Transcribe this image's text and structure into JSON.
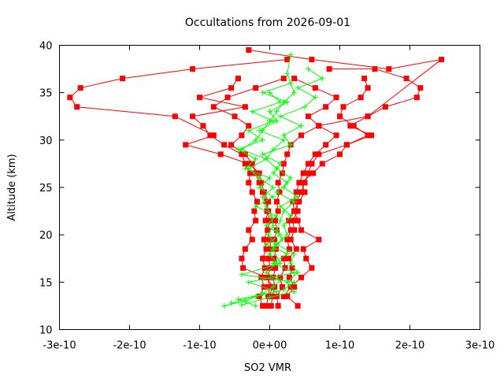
{
  "chart_data": {
    "type": "line",
    "title": "Occultations from 2026-09-01",
    "xlabel": "SO2 VMR",
    "ylabel": "Altitude (km)",
    "xlim": [
      -3e-10,
      3e-10
    ],
    "ylim": [
      10,
      40
    ],
    "x_ticks": [
      -3e-10,
      -2e-10,
      -1e-10,
      0,
      1e-10,
      2e-10,
      3e-10
    ],
    "x_tick_labels": [
      "-3e-10",
      "-2e-10",
      "-1e-10",
      "0e+00",
      "1e-10",
      "2e-10",
      "3e-10"
    ],
    "y_ticks": [
      10,
      15,
      20,
      25,
      30,
      35,
      40
    ],
    "y_tick_labels": [
      "10",
      "15",
      "20",
      "25",
      "30",
      "35",
      "40"
    ],
    "grid": false,
    "colors": {
      "red": "#ff0000",
      "green": "#00ff00",
      "frame": "#000000"
    },
    "series": [
      {
        "color": "red",
        "marker": "square",
        "x": [
          2e-12,
          4e-12,
          7e-12,
          5e-12,
          8e-12,
          6e-12,
          9e-12,
          7e-12,
          1e-11,
          8e-12,
          1.2e-11,
          1e-11,
          1.4e-11,
          1.2e-11,
          1.8e-11,
          2e-11,
          2.5e-11,
          3e-11,
          4.5e-11,
          7e-11,
          1.4e-10,
          2.45e-10,
          1.7e-10,
          6e-11,
          -3e-11
        ],
        "y": [
          12.5,
          13.5,
          14.5,
          15.5,
          16.5,
          17.5,
          18.5,
          19.5,
          20.5,
          21.5,
          22.5,
          23.5,
          24.5,
          25.5,
          26.5,
          27.5,
          28.5,
          29.5,
          30.5,
          31.5,
          32.5,
          38.5,
          37.5,
          38.5,
          39.5
        ]
      },
      {
        "color": "red",
        "marker": "square",
        "x": [
          -5e-12,
          -2e-12,
          0.0,
          -3e-12,
          1e-12,
          -2e-12,
          2e-12,
          0.0,
          -3e-12,
          1e-12,
          -4e-12,
          -2e-12,
          -8e-12,
          -1.2e-11,
          -1.5e-11,
          -3e-11,
          -7e-11,
          -1.2e-10,
          -8e-11,
          -1.35e-10,
          -2.75e-10,
          -2.85e-10,
          -2.7e-10,
          -2.1e-10,
          -1.1e-10,
          2.5e-11
        ],
        "y": [
          12.5,
          13.5,
          14.5,
          15.5,
          16.5,
          17.5,
          18.5,
          19.5,
          20.5,
          21.5,
          22.5,
          23.5,
          24.5,
          25.5,
          26.5,
          27.5,
          28.5,
          29.5,
          30.5,
          32.5,
          33.5,
          34.5,
          35.5,
          36.5,
          37.5,
          38.5
        ]
      },
      {
        "color": "red",
        "marker": "square",
        "x": [
          4e-11,
          2.5e-11,
          3.5e-11,
          2.8e-11,
          3.2e-11,
          2.7e-11,
          3.8e-11,
          3e-11,
          3.5e-11,
          3.3e-11,
          4e-11,
          3.8e-11,
          4.5e-11,
          5e-11,
          5.5e-11,
          6e-11,
          7e-11,
          1.1e-10,
          1.45e-10,
          1.15e-10,
          1.4e-10,
          1.65e-10,
          2.1e-10,
          2.15e-10,
          1.95e-10,
          1.5e-10,
          8.5e-11
        ],
        "y": [
          12.5,
          13.5,
          14.5,
          15.5,
          16.5,
          17.5,
          18.5,
          19.5,
          20.5,
          21.5,
          22.5,
          23.5,
          24.5,
          25.5,
          26.5,
          27.5,
          28.5,
          29.5,
          30.5,
          31.5,
          32.5,
          33.5,
          34.5,
          35.5,
          36.5,
          37.5,
          37.5
        ]
      },
      {
        "color": "red",
        "marker": "square",
        "x": [
          -1e-11,
          -1.5e-11,
          -8e-12,
          -1.2e-11,
          -7e-12,
          -1e-11,
          -5e-12,
          -8e-12,
          -3e-12,
          -6e-12,
          -2e-12,
          -5e-12,
          -1e-11,
          -1.5e-11,
          -2e-11,
          -2.5e-11,
          -3.5e-11,
          -5.5e-11,
          -4e-11,
          -3e-11,
          -5e-11,
          -8e-11,
          -6e-11,
          -2e-11,
          2e-11
        ],
        "y": [
          12.5,
          13.5,
          14.5,
          15.5,
          16.5,
          17.5,
          18.5,
          19.5,
          20.5,
          21.5,
          22.5,
          23.5,
          24.5,
          25.5,
          26.5,
          27.5,
          28.5,
          29.5,
          30.5,
          31.5,
          32.5,
          33.5,
          34.5,
          35.5,
          36.5
        ]
      },
      {
        "color": "red",
        "marker": "square",
        "x": [
          1.2e-11,
          1e-11,
          1.8e-11,
          1.5e-11,
          2.2e-11,
          2e-11,
          2.8e-11,
          2.5e-11,
          3e-11,
          2.7e-11,
          3.5e-11,
          3.3e-11,
          3.8e-11,
          4.2e-11,
          4.8e-11,
          5.5e-11,
          6.5e-11,
          8e-11,
          9.5e-11,
          7e-11,
          5.5e-11,
          8e-11,
          9.5e-11,
          6.5e-11,
          3.5e-11
        ],
        "y": [
          12.5,
          13.5,
          14.5,
          15.5,
          16.5,
          17.5,
          18.5,
          19.5,
          20.5,
          21.5,
          22.5,
          23.5,
          24.5,
          25.5,
          26.5,
          27.5,
          28.5,
          29.5,
          30.5,
          31.5,
          32.5,
          33.5,
          34.5,
          35.5,
          36.5
        ]
      },
      {
        "color": "red",
        "marker": "square",
        "x": [
          -2e-12,
          5e-12,
          -5e-12,
          -3.8e-11,
          -4e-11,
          -3.5e-11,
          -2.5e-11,
          -3e-11,
          -2e-11,
          -2.2e-11,
          -1.8e-11,
          -2.5e-11,
          -3e-11,
          -2.8e-11,
          -3.5e-11,
          -4e-11,
          -6.5e-11,
          -8.5e-11,
          -9.5e-11,
          -1.1e-10,
          -3.5e-11,
          -1e-10,
          -5.5e-11,
          -4.5e-11
        ],
        "y": [
          13.5,
          14.5,
          15.5,
          16.5,
          17.5,
          18.5,
          19.5,
          20.5,
          21.5,
          22.5,
          23.5,
          24.5,
          25.5,
          26.5,
          27.5,
          28.5,
          29.5,
          30.5,
          31.5,
          32.5,
          33.5,
          34.5,
          35.5,
          36.5
        ]
      },
      {
        "color": "red",
        "marker": "square",
        "x": [
          2e-11,
          3e-11,
          4.5e-11,
          6e-11,
          5.2e-11,
          4.8e-11,
          7e-11,
          4.5e-11,
          4e-11,
          3.5e-11,
          4.2e-11,
          5e-11,
          4.5e-11,
          6.2e-11,
          7.5e-11,
          1e-10,
          1.1e-10,
          1.4e-10,
          1.2e-10,
          1e-10,
          1.05e-10,
          1.3e-10,
          1.4e-10,
          1.35e-10
        ],
        "y": [
          13.5,
          14.5,
          15.5,
          16.5,
          17.5,
          18.5,
          19.5,
          20.5,
          21.5,
          22.5,
          23.5,
          24.5,
          25.5,
          26.5,
          27.5,
          28.5,
          29.5,
          30.5,
          31.5,
          32.5,
          33.5,
          34.5,
          35.5,
          36.5
        ]
      }
    ],
    "green_series": [
      {
        "color": "green",
        "marker": "plus",
        "x": [
          -6.5e-11,
          -3.5e-11,
          -1e-11,
          5e-12,
          1.5e-11,
          -5e-12,
          1e-11,
          0.0,
          8e-12,
          -2e-12,
          5e-12,
          2e-12,
          -5e-12,
          -1e-11,
          5e-12,
          -1.5e-11,
          -3e-11,
          -5e-12,
          -4e-11,
          -2e-11,
          -1e-11,
          0.0,
          1e-11,
          2e-11,
          3.5e-11,
          2.5e-11,
          3e-11
        ],
        "y": [
          12.5,
          13.0,
          13.8,
          14.5,
          15.2,
          16.0,
          17.0,
          18.0,
          19.0,
          20.0,
          21.0,
          22.0,
          23.0,
          24.0,
          25.0,
          26.0,
          27.0,
          28.0,
          29.0,
          30.0,
          31.0,
          32.0,
          33.0,
          34.0,
          35.0,
          37.0,
          39.0
        ]
      },
      {
        "color": "green",
        "marker": "plus",
        "x": [
          -5.5e-11,
          -2e-11,
          2e-11,
          3.5e-11,
          -4e-11,
          1.5e-11,
          5e-12,
          1.8e-11,
          1e-11,
          1.5e-11,
          2e-11,
          3.5e-11,
          1e-11,
          2.5e-11,
          5e-12,
          1.5e-11,
          -1e-11,
          3e-11,
          2e-11,
          4.5e-11,
          1.5e-11,
          5e-11,
          6.5e-11,
          4e-11,
          7.5e-11,
          5.5e-11
        ],
        "y": [
          12.8,
          13.5,
          14.2,
          15.0,
          15.8,
          17.0,
          18.5,
          19.5,
          20.5,
          21.5,
          22.5,
          23.5,
          24.5,
          25.5,
          26.5,
          27.5,
          28.5,
          29.5,
          30.5,
          31.5,
          32.5,
          33.5,
          34.5,
          35.5,
          36.5,
          37.5
        ]
      },
      {
        "color": "green",
        "marker": "plus",
        "x": [
          -4e-11,
          0.0,
          3.5e-11,
          2.5e-11,
          4e-11,
          3e-11,
          3.5e-11,
          1e-11,
          2.5e-11,
          2e-11,
          3e-11,
          1.5e-11,
          4e-11,
          2e-11,
          3e-11,
          1e-11,
          -5e-12,
          5e-12,
          2e-11,
          -1.5e-11,
          1e-11,
          0.0,
          2.5e-11,
          -1e-11,
          3e-11
        ],
        "y": [
          12.6,
          13.4,
          14.0,
          15.0,
          16.0,
          17.0,
          18.0,
          19.0,
          20.0,
          21.0,
          22.0,
          23.0,
          24.0,
          25.0,
          26.0,
          27.0,
          28.0,
          29.0,
          30.0,
          31.0,
          32.0,
          33.0,
          34.0,
          35.0,
          36.0
        ]
      },
      {
        "color": "green",
        "marker": "plus",
        "x": [
          -2e-11,
          -4.5e-11,
          1e-11,
          -3e-11,
          3.5e-11,
          5e-12,
          2.5e-11,
          -5e-12,
          1.5e-11,
          -5e-12,
          1e-11,
          -2e-11,
          5e-12,
          -1.5e-11,
          0.0,
          -3.5e-11,
          -2e-11,
          -4.5e-11,
          -1e-11,
          -3e-11,
          5e-12,
          -2.5e-11,
          1.5e-11,
          0.0
        ],
        "y": [
          12.5,
          13.2,
          14.0,
          15.0,
          16.0,
          17.0,
          18.0,
          19.0,
          20.0,
          21.0,
          22.0,
          23.0,
          24.0,
          25.0,
          26.0,
          27.0,
          28.0,
          29.0,
          30.0,
          31.0,
          32.0,
          33.0,
          34.0,
          35.0
        ]
      }
    ]
  }
}
